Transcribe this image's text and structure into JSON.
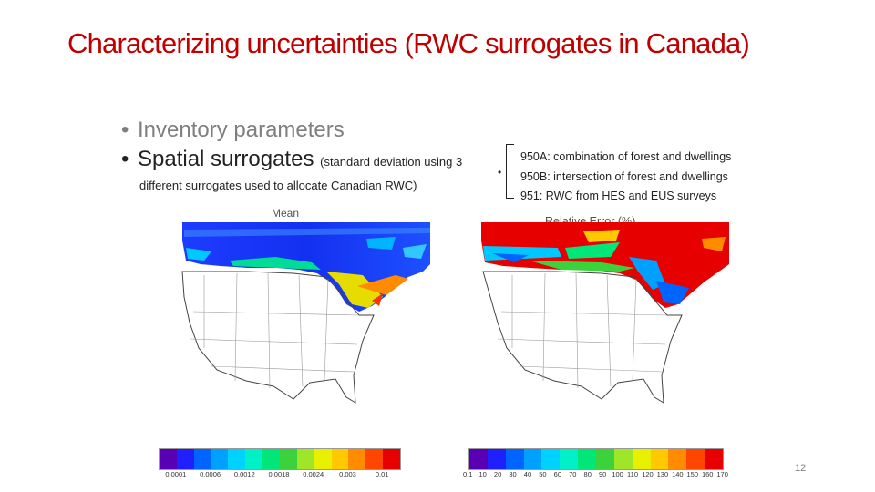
{
  "slide": {
    "title": "Characterizing uncertainties (RWC surrogates in Canada)",
    "bullet_1": "Inventory parameters",
    "bullet_2_main": "Spatial surrogates ",
    "bullet_2_small": "(standard deviation using 3",
    "bullet_2_cont": "different surrogates used to allocate Canadian RWC)",
    "bullet_marker": "•",
    "surrogates": [
      "950A: combination of forest and dwellings",
      "950B: intersection of forest and dwellings",
      "951: RWC from HES and EUS surveys"
    ],
    "caption_mean": "Mean",
    "caption_relative_error": "Relative Error (%)",
    "mean_scale_ticks": [
      "0.0001",
      "0.0006",
      "0.0012",
      "0.0018",
      "0.0024",
      "0.003",
      "0.01"
    ],
    "error_scale_ticks": [
      "0.1",
      "10",
      "20",
      "30",
      "40",
      "50",
      "60",
      "70",
      "80",
      "90",
      "100",
      "110",
      "120",
      "130",
      "140",
      "150",
      "160",
      "170"
    ],
    "page_number": "12",
    "colors": {
      "title": "#c00000",
      "colormap": [
        "#5a00b4",
        "#2020ff",
        "#0064ff",
        "#00a0ff",
        "#00d2ff",
        "#00f0c8",
        "#00e678",
        "#3cd23c",
        "#a0e628",
        "#e6f000",
        "#ffc800",
        "#ff8c00",
        "#ff4600",
        "#e60000"
      ]
    }
  }
}
